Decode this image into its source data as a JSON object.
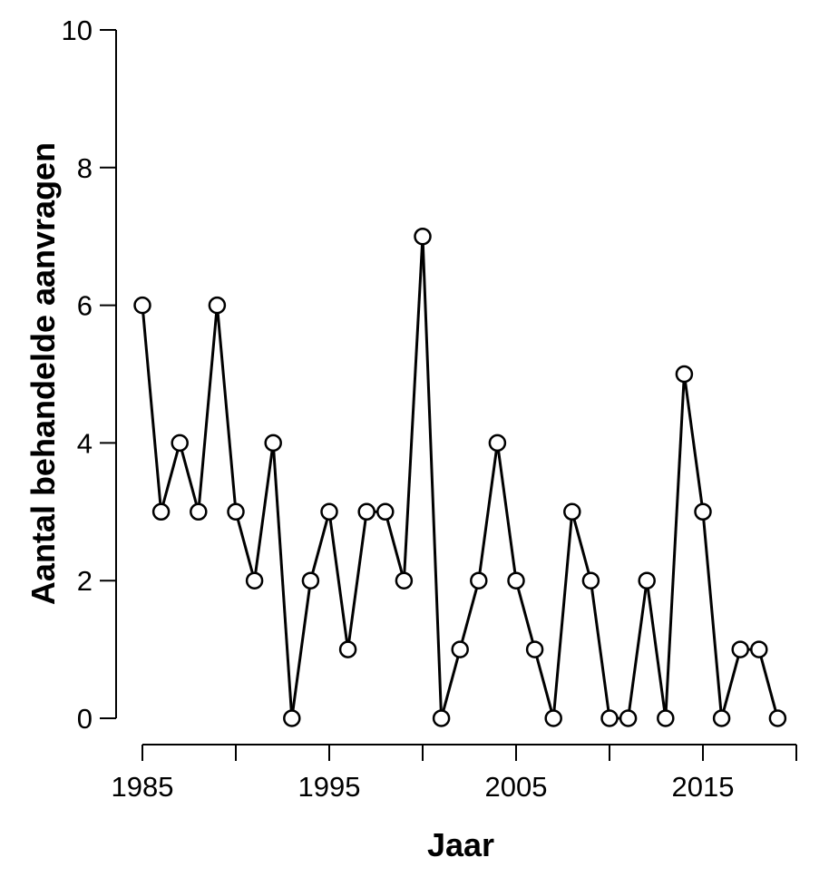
{
  "chart_data": {
    "type": "line",
    "title": "",
    "xlabel": "Jaar",
    "ylabel": "Aantal behandelde aanvragen",
    "xlim": [
      1985,
      2020
    ],
    "ylim": [
      0,
      10
    ],
    "x_ticks": [
      1985,
      1990,
      1995,
      2000,
      2005,
      2010,
      2015,
      2020
    ],
    "x_tick_labels": [
      "1985",
      "",
      "1995",
      "",
      "2005",
      "",
      "2015",
      ""
    ],
    "y_ticks": [
      0,
      2,
      4,
      6,
      8,
      10
    ],
    "y_tick_labels": [
      "0",
      "2",
      "4",
      "6",
      "8",
      "10"
    ],
    "grid": false,
    "marker": "open-circle",
    "series": [
      {
        "x": [
          1985,
          1986,
          1987,
          1988,
          1989,
          1990,
          1991,
          1992,
          1993,
          1994,
          1995,
          1996,
          1997,
          1998,
          1999,
          2000,
          2001,
          2002,
          2003,
          2004,
          2005,
          2006,
          2007,
          2008,
          2009,
          2010,
          2011,
          2012,
          2013,
          2014,
          2015,
          2016,
          2017,
          2018,
          2019
        ],
        "y": [
          6,
          3,
          4,
          3,
          6,
          3,
          2,
          4,
          0,
          2,
          3,
          1,
          3,
          3,
          2,
          7,
          0,
          1,
          2,
          4,
          2,
          1,
          0,
          3,
          2,
          0,
          0,
          2,
          0,
          5,
          3,
          0,
          1,
          1,
          0
        ],
        "color": "#000000"
      }
    ]
  }
}
